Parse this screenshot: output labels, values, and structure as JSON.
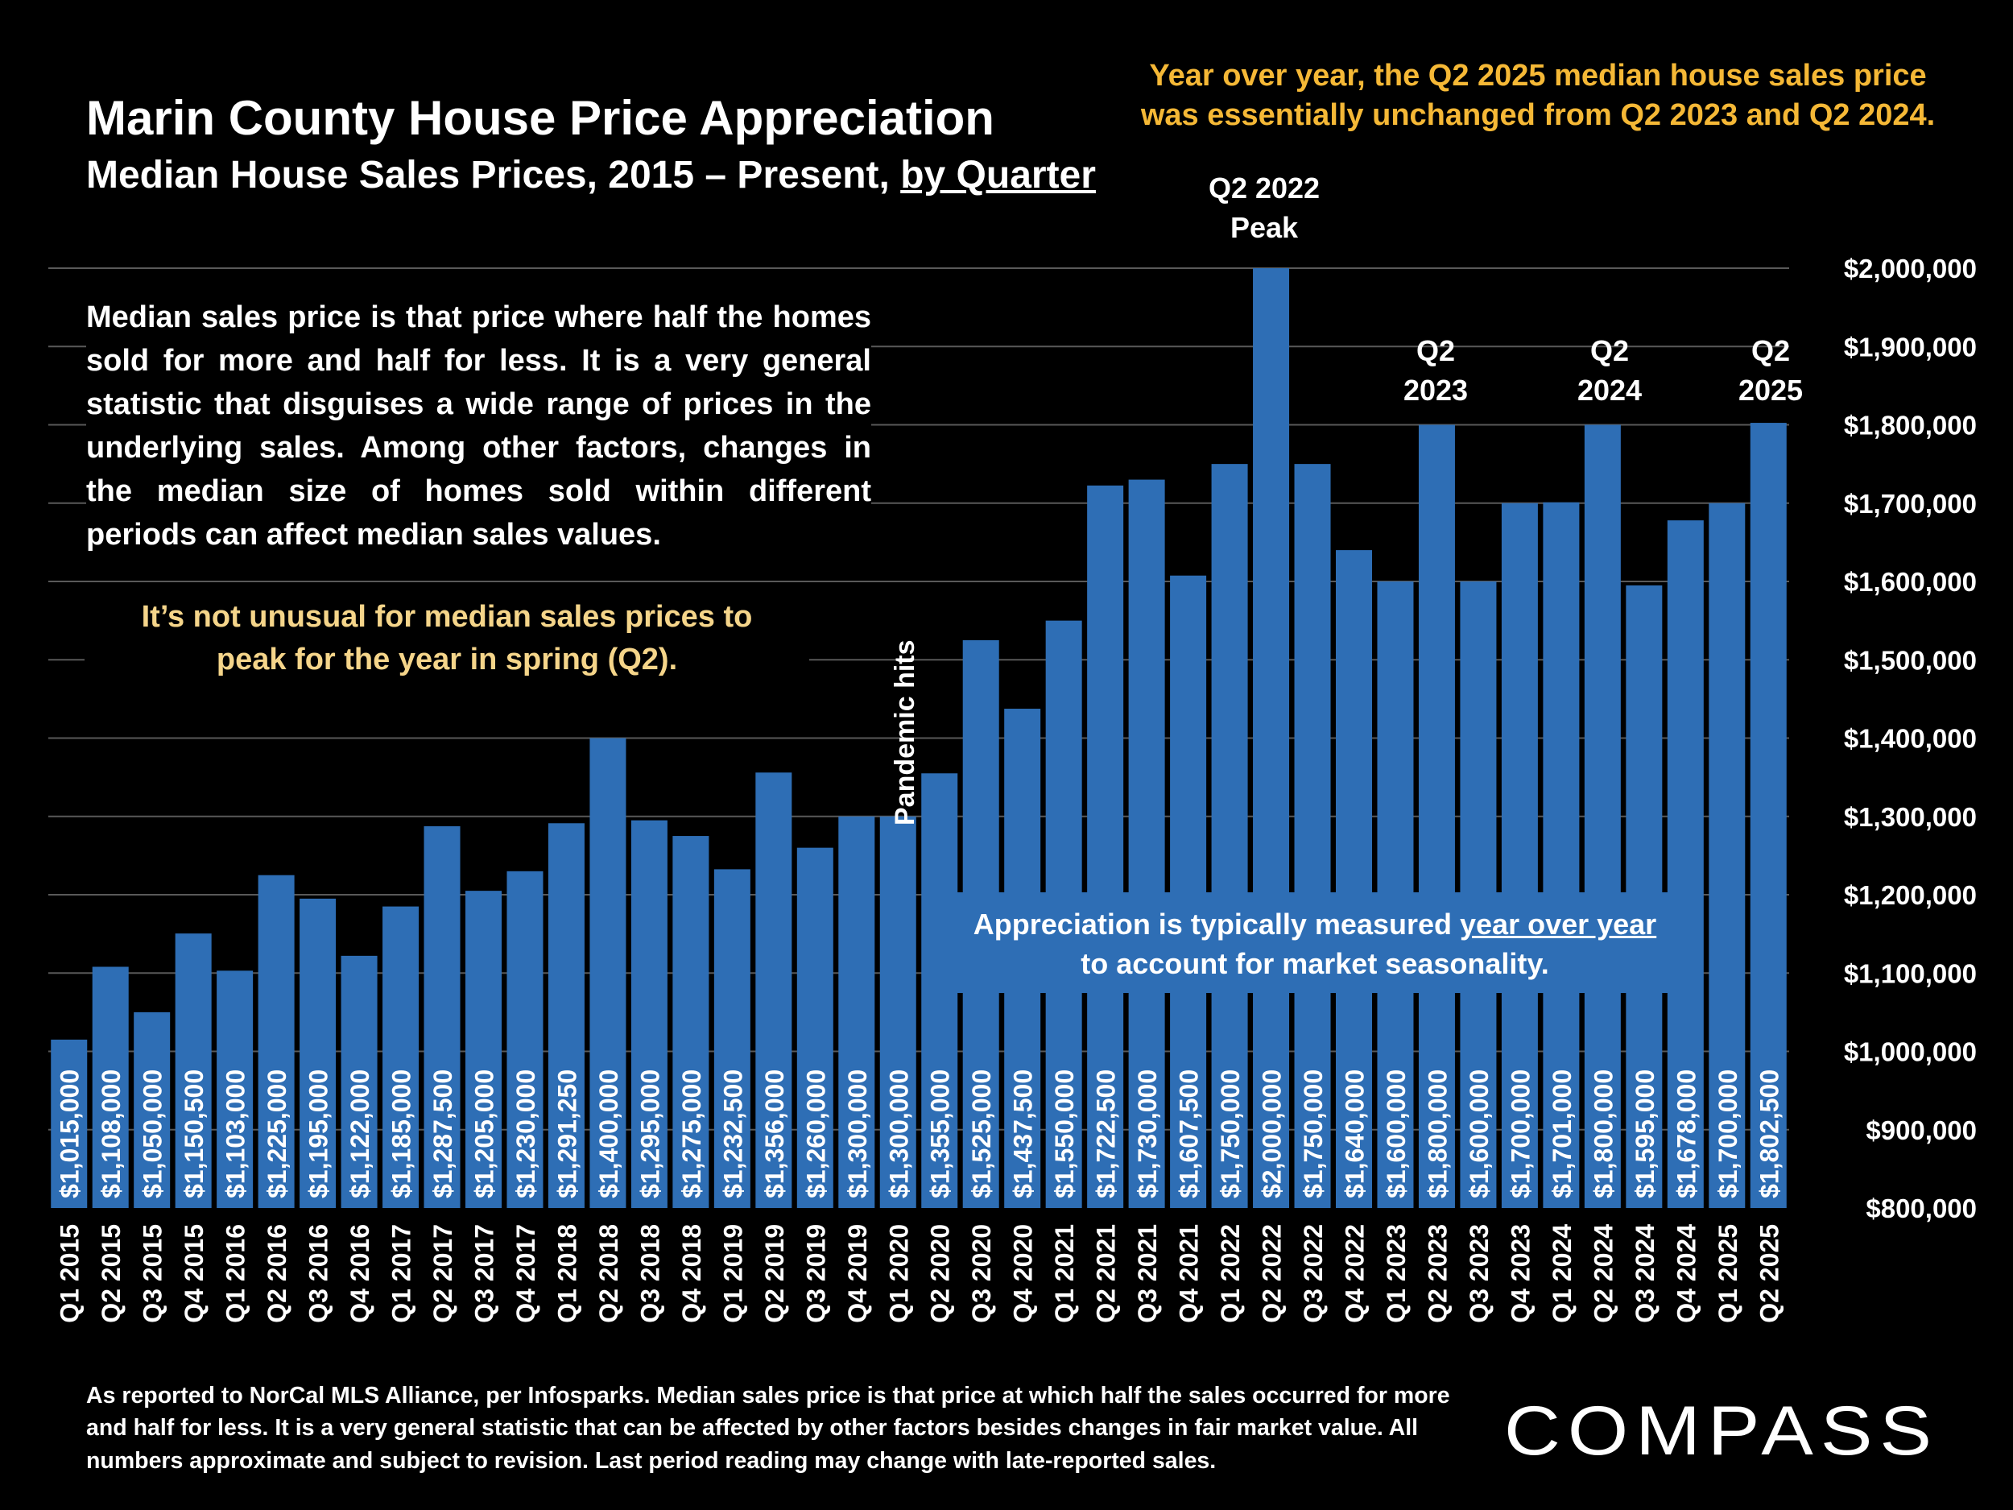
{
  "header": {
    "title": "Marin County House Price Appreciation",
    "subtitle_prefix": "Median House Sales Prices, 2015 – Present, ",
    "subtitle_underlined": "by Quarter"
  },
  "callouts": {
    "top_right_line1": "Year over year, the Q2 2025 median house sales price",
    "top_right_line2": "was essentially unchanged from Q2 2023 and Q2 2024.",
    "explanation": "Median sales price is that price where half the homes sold for more and half for less. It is a very general statistic that disguises a wide range of prices in the underlying sales. Among other factors, changes in the median size of homes sold within different periods can affect median sales values.",
    "seasonal_line1": "It’s not unusual for median sales prices to",
    "seasonal_line2": "peak for the year in spring (Q2).",
    "yoy_prefix": "Appreciation is typically measured ",
    "yoy_underlined": "year over year",
    "yoy_line2": "to account for market seasonality.",
    "pandemic": "Pandemic hits",
    "peak_line1": "Q2 2022",
    "peak_line2": "Peak",
    "q2_2023_line1": "Q2",
    "q2_2023_line2": "2023",
    "q2_2024_line1": "Q2",
    "q2_2024_line2": "2024",
    "q2_2025_line1": "Q2",
    "q2_2025_line2": "2025"
  },
  "footnote": "As reported to NorCal MLS Alliance, per Infosparks. Median sales price is that price at which half the sales occurred for more and half for less. It is a very general statistic that can be affected by other factors besides changes in fair market value. All numbers approximate and subject to revision. Last period reading may change with late-reported sales.",
  "brand": {
    "logo_text": "COMPASS"
  },
  "colors": {
    "bar": "#2E6EB5",
    "background": "#000000",
    "gold": "#F5B836",
    "light_gold": "#F5D58A",
    "grid": "#595959"
  },
  "chart_data": {
    "type": "bar",
    "categories": [
      "Q1 2015",
      "Q2 2015",
      "Q3 2015",
      "Q4 2015",
      "Q1 2016",
      "Q2 2016",
      "Q3 2016",
      "Q4 2016",
      "Q1 2017",
      "Q2 2017",
      "Q3 2017",
      "Q4 2017",
      "Q1 2018",
      "Q2 2018",
      "Q3 2018",
      "Q4 2018",
      "Q1 2019",
      "Q2 2019",
      "Q3 2019",
      "Q4 2019",
      "Q1 2020",
      "Q2 2020",
      "Q3 2020",
      "Q4 2020",
      "Q1 2021",
      "Q2 2021",
      "Q3 2021",
      "Q4 2021",
      "Q1 2022",
      "Q2 2022",
      "Q3 2022",
      "Q4 2022",
      "Q1 2023",
      "Q2 2023",
      "Q3 2023",
      "Q4 2023",
      "Q1 2024",
      "Q2 2024",
      "Q3 2024",
      "Q4 2024",
      "Q1 2025",
      "Q2 2025"
    ],
    "values": [
      1015000,
      1108000,
      1050000,
      1150500,
      1103000,
      1225000,
      1195000,
      1122000,
      1185000,
      1287500,
      1205000,
      1230000,
      1291250,
      1400000,
      1295000,
      1275000,
      1232500,
      1356000,
      1260000,
      1300000,
      1300000,
      1355000,
      1525000,
      1437500,
      1550000,
      1722500,
      1730000,
      1607500,
      1750000,
      2000000,
      1750000,
      1640000,
      1600000,
      1800000,
      1600000,
      1700000,
      1701000,
      1800000,
      1595000,
      1678000,
      1700000,
      1802500
    ],
    "data_labels": [
      "$1,015,000",
      "$1,108,000",
      "$1,050,000",
      "$1,150,500",
      "$1,103,000",
      "$1,225,000",
      "$1,195,000",
      "$1,122,000",
      "$1,185,000",
      "$1,287,500",
      "$1,205,000",
      "$1,230,000",
      "$1,291,250",
      "$1,400,000",
      "$1,295,000",
      "$1,275,000",
      "$1,232,500",
      "$1,356,000",
      "$1,260,000",
      "$1,300,000",
      "$1,300,000",
      "$1,355,000",
      "$1,525,000",
      "$1,437,500",
      "$1,550,000",
      "$1,722,500",
      "$1,730,000",
      "$1,607,500",
      "$1,750,000",
      "$2,000,000",
      "$1,750,000",
      "$1,640,000",
      "$1,600,000",
      "$1,800,000",
      "$1,600,000",
      "$1,700,000",
      "$1,701,000",
      "$1,800,000",
      "$1,595,000",
      "$1,678,000",
      "$1,700,000",
      "$1,802,500"
    ],
    "ylim": [
      800000,
      2000000
    ],
    "y_ticks": [
      800000,
      900000,
      1000000,
      1100000,
      1200000,
      1300000,
      1400000,
      1500000,
      1600000,
      1700000,
      1800000,
      1900000,
      2000000
    ],
    "y_tick_labels": [
      "$800,000",
      "$900,000",
      "$1,000,000",
      "$1,100,000",
      "$1,200,000",
      "$1,300,000",
      "$1,400,000",
      "$1,500,000",
      "$1,600,000",
      "$1,700,000",
      "$1,800,000",
      "$1,900,000",
      "$2,000,000"
    ],
    "y_axis_side": "right",
    "grid": true
  }
}
